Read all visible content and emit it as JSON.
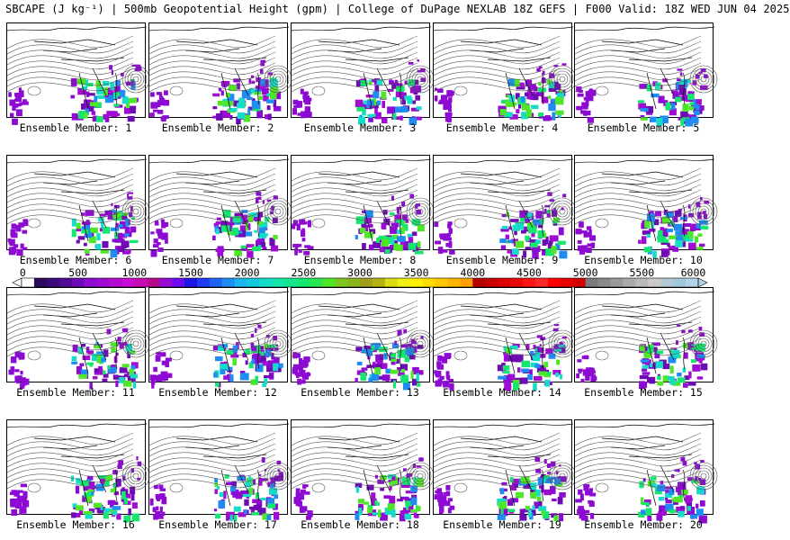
{
  "title": "SBCAPE (J kg⁻¹) | 500mb Geopotential Height (gpm) | College of DuPage NEXLAB 18Z GEFS | F000 Valid: 18Z WED JUN 04 2025",
  "members": [
    "Ensemble Member: 1",
    "Ensemble Member: 2",
    "Ensemble Member: 3",
    "Ensemble Member: 4",
    "Ensemble Member: 5",
    "Ensemble Member: 6",
    "Ensemble Member: 7",
    "Ensemble Member: 8",
    "Ensemble Member: 9",
    "Ensemble Member: 10",
    "Ensemble Member: 11",
    "Ensemble Member: 12",
    "Ensemble Member: 13",
    "Ensemble Member: 14",
    "Ensemble Member: 15",
    "Ensemble Member: 16",
    "Ensemble Member: 17",
    "Ensemble Member: 18",
    "Ensemble Member: 19",
    "Ensemble Member: 20"
  ],
  "colorbar": {
    "ticks": [
      "0",
      "500",
      "1000",
      "1500",
      "2000",
      "2500",
      "3000",
      "3500",
      "4000",
      "4500",
      "5000",
      "5500",
      "6000"
    ],
    "colors": [
      "#ffffff",
      "#2a0a5a",
      "#3c0a78",
      "#500a96",
      "#6e0ab4",
      "#8c0ad2",
      "#a00ad2",
      "#b40ad2",
      "#c80ad2",
      "#c80ab4",
      "#b40a8c",
      "#960ad2",
      "#6e0af0",
      "#1e14e6",
      "#1e3cf0",
      "#1e64f0",
      "#1e8cf0",
      "#1eb4f0",
      "#14c8dc",
      "#14dcc8",
      "#14e6aa",
      "#14e68c",
      "#14e66e",
      "#28e650",
      "#50e628",
      "#78c81e",
      "#8cb41e",
      "#a0a01e",
      "#b4b414",
      "#dcdc14",
      "#f0f014",
      "#fff000",
      "#ffdc00",
      "#ffc800",
      "#ffb400",
      "#ffa000",
      "#b40000",
      "#c80000",
      "#dc0000",
      "#e60a0a",
      "#ff1414",
      "#ff2828",
      "#ff0000",
      "#e60000",
      "#d20000",
      "#7a7a7a",
      "#8a8a8a",
      "#9a9a9a",
      "#aaaaaa",
      "#bababa",
      "#cacaca",
      "#b4c8d2",
      "#a0c8dc",
      "#b4d2e6"
    ]
  }
}
